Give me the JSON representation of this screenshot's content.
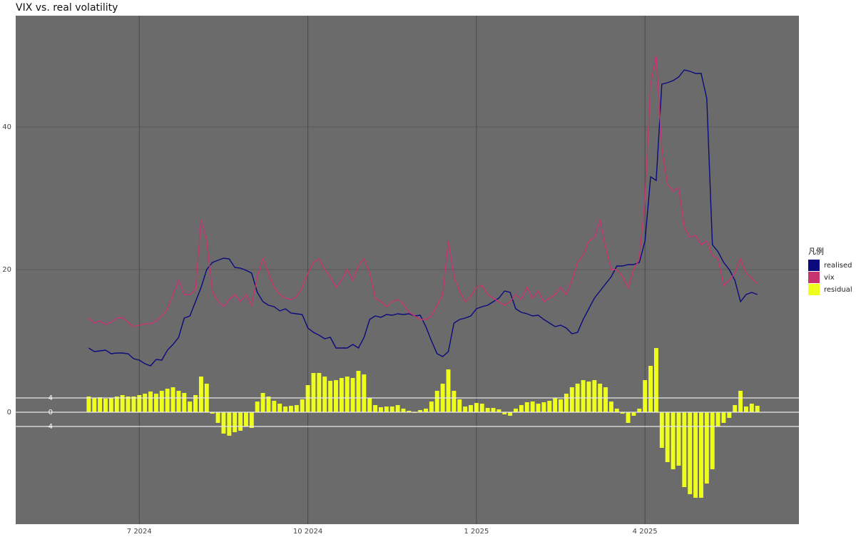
{
  "chart_data": {
    "type": "line",
    "title": "VIX vs. real volatility",
    "legend_title": "凡例",
    "legend": "right",
    "grid": true,
    "x": [
      6.1,
      6.2,
      6.3,
      6.4,
      6.5,
      6.6,
      6.7,
      6.8,
      6.9,
      7.0,
      7.1,
      7.2,
      7.3,
      7.4,
      7.5,
      7.6,
      7.7,
      7.8,
      7.9,
      8.0,
      8.1,
      8.2,
      8.3,
      8.4,
      8.5,
      8.6,
      8.7,
      8.8,
      8.9,
      9.0,
      9.1,
      9.2,
      9.3,
      9.4,
      9.5,
      9.6,
      9.7,
      9.8,
      9.9,
      10.0,
      10.1,
      10.2,
      10.3,
      10.4,
      10.5,
      10.6,
      10.7,
      10.8,
      10.9,
      11.0,
      11.1,
      11.2,
      11.3,
      11.4,
      11.5,
      11.6,
      11.7,
      11.8,
      11.9,
      12.0,
      12.1,
      12.2,
      12.3,
      12.4,
      12.5,
      12.6,
      12.7,
      12.8,
      12.9,
      13.0,
      13.1,
      13.2,
      13.3,
      13.4,
      13.5,
      13.6,
      13.7,
      13.8,
      13.9,
      14.0,
      14.1,
      14.2,
      14.3,
      14.4,
      14.5,
      14.6,
      14.7,
      14.8,
      14.9,
      15.0,
      15.1,
      15.2,
      15.3,
      15.4,
      15.5,
      15.6,
      15.7,
      15.8,
      15.9,
      16.0,
      16.1,
      16.2,
      16.3,
      16.4,
      16.5,
      16.6,
      16.7,
      16.8,
      16.9,
      17.0,
      17.1,
      17.2,
      17.3,
      17.4,
      17.5,
      17.6,
      17.7,
      17.8,
      17.9,
      18.0
    ],
    "xlim": [
      4.8,
      18.74
    ],
    "xticks": [
      {
        "value": 7,
        "label": "7 2024"
      },
      {
        "value": 10,
        "label": "10 2024"
      },
      {
        "value": 13,
        "label": "1 2025"
      },
      {
        "value": 16,
        "label": "4 2025"
      }
    ],
    "ylim": [
      -15.7,
      55.6
    ],
    "yticks": [
      0,
      20,
      40
    ],
    "hlines": [
      {
        "value": 2,
        "label": "4"
      },
      {
        "value": 0,
        "label": "0"
      },
      {
        "value": -2,
        "label": "-4"
      }
    ],
    "series": [
      {
        "name": "realised",
        "color": "#0a0a7e",
        "type": "line",
        "values": [
          9,
          8.5,
          8.6,
          8.7,
          8.2,
          8.3,
          8.3,
          8.2,
          7.5,
          7.3,
          6.8,
          6.5,
          7.4,
          7.3,
          8.7,
          9.5,
          10.5,
          13.2,
          13.5,
          15.5,
          17.5,
          20,
          21,
          21.3,
          21.6,
          21.5,
          20.3,
          20.2,
          19.9,
          19.5,
          16.8,
          15.5,
          15,
          14.8,
          14.2,
          14.5,
          13.9,
          13.8,
          13.7,
          11.8,
          11.2,
          10.8,
          10.3,
          10.5,
          9,
          9,
          9,
          9.5,
          9,
          10.5,
          13,
          13.5,
          13.3,
          13.7,
          13.6,
          13.8,
          13.7,
          13.8,
          13.5,
          13.6,
          12,
          10,
          8.2,
          7.8,
          8.5,
          12.5,
          13,
          13.2,
          13.5,
          14.5,
          14.8,
          15,
          15.5,
          16,
          17,
          16.8,
          14.5,
          14,
          13.8,
          13.5,
          13.6,
          13,
          12.5,
          12,
          12.2,
          11.8,
          11,
          11.2,
          13,
          14.5,
          16,
          17,
          18,
          19,
          20.5,
          20.5,
          20.7,
          20.7,
          21,
          24,
          33,
          32.5,
          46,
          46.2,
          46.5,
          47,
          48,
          47.8,
          47.5,
          47.5,
          44,
          23.5,
          22.5,
          21,
          20,
          18.5,
          15.5,
          16.5,
          16.8,
          16.5
        ]
      },
      {
        "name": "vix",
        "color": "#c83470",
        "type": "line",
        "values": [
          13.2,
          12.5,
          12.8,
          12.3,
          12.6,
          13.2,
          13.3,
          12.6,
          12,
          12.2,
          12.4,
          12.4,
          12.8,
          13.5,
          14.5,
          16.5,
          18.5,
          16.5,
          16.5,
          17.2,
          27,
          24,
          17,
          15.5,
          14.8,
          15.8,
          16.5,
          15.5,
          16.5,
          15,
          19,
          21.5,
          19.5,
          17.5,
          16.5,
          16,
          15.8,
          16.2,
          17.5,
          19.5,
          21,
          21.5,
          20,
          19,
          17.5,
          18.5,
          20,
          18.5,
          20.5,
          21.5,
          19.5,
          16,
          15.5,
          14.8,
          15.5,
          15.8,
          15.2,
          14,
          13.5,
          13,
          13,
          13.5,
          15,
          16.5,
          24,
          19,
          17,
          15.5,
          16.2,
          17.5,
          17.8,
          16.5,
          16,
          15.5,
          15,
          15.5,
          16.5,
          15.8,
          17.5,
          16,
          17,
          15.5,
          16,
          16.5,
          17.5,
          16.5,
          18.5,
          21,
          22,
          24,
          24.5,
          27,
          23,
          20,
          20,
          19,
          17.5,
          20,
          21.5,
          30,
          46,
          50,
          37,
          32,
          31,
          31.5,
          26,
          24.5,
          24.8,
          23.5,
          24,
          22,
          21.5,
          17.8,
          18.5,
          19.5,
          21.5,
          19.5,
          18.8,
          18
        ]
      },
      {
        "name": "residual",
        "color": "#eeff1e",
        "type": "bar",
        "values": [
          2.2,
          2,
          2.1,
          1.9,
          2,
          2.2,
          2.4,
          2.2,
          2.2,
          2.4,
          2.6,
          2.9,
          2.6,
          3,
          3.3,
          3.5,
          3,
          2.7,
          1.5,
          2.4,
          5,
          4,
          -0.2,
          -1.5,
          -3,
          -3.3,
          -2.8,
          -2.6,
          -2,
          -2.2,
          1.5,
          2.7,
          2.2,
          1.6,
          1.2,
          0.8,
          0.9,
          1,
          1.8,
          3.8,
          5.5,
          5.5,
          5,
          4.4,
          4.5,
          4.8,
          5,
          4.8,
          5.8,
          5.3,
          2,
          1,
          0.7,
          0.8,
          0.8,
          1,
          0.5,
          0.2,
          -0.1,
          0.3,
          0.5,
          1.5,
          3,
          4,
          6,
          3,
          1.8,
          0.8,
          1,
          1.3,
          1.2,
          0.6,
          0.6,
          0.4,
          -0.3,
          -0.5,
          0.5,
          1,
          1.4,
          1.5,
          1.2,
          1.4,
          1.6,
          2,
          1.8,
          2.6,
          3.5,
          4,
          4.5,
          4.3,
          4.5,
          4,
          3.5,
          1.5,
          0.5,
          -0.2,
          -1.5,
          -0.5,
          0.5,
          4.5,
          6.5,
          9,
          -5,
          -7,
          -8,
          -7.5,
          -10.5,
          -11.5,
          -12,
          -12,
          -10,
          -8,
          -2,
          -1.5,
          -0.8,
          1,
          3,
          0.8,
          1.2,
          0.9
        ]
      }
    ]
  }
}
